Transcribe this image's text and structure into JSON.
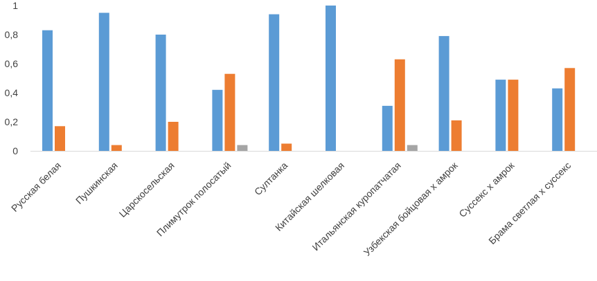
{
  "chart_data": {
    "type": "bar",
    "categories": [
      "Русская белая",
      "Пушкинская",
      "Царскосельская",
      "Плимутрок полосатый",
      "Султанка",
      "Китайская шелковая",
      "Итальянская куропатчатая",
      "Узбекская бойцовая х амрок",
      "Суссекс х амрок",
      "Брама светлая х суссекс"
    ],
    "series": [
      {
        "values": [
          0.83,
          0.95,
          0.8,
          0.42,
          0.94,
          1.0,
          0.31,
          0.79,
          0.49,
          0.43
        ]
      },
      {
        "values": [
          0.17,
          0.04,
          0.2,
          0.53,
          0.05,
          0.0,
          0.63,
          0.21,
          0.49,
          0.57
        ]
      },
      {
        "values": [
          0.0,
          0.0,
          0.0,
          0.04,
          0.0,
          0.0,
          0.04,
          0.0,
          0.0,
          0.0
        ]
      }
    ],
    "colors": [
      "#5b9bd5",
      "#ed7d31",
      "#a5a5a5"
    ],
    "yticks": [
      "0",
      "0,2",
      "0,4",
      "0,6",
      "0,8",
      "1"
    ],
    "ylim": [
      0,
      1
    ],
    "grid": false,
    "legend": "none",
    "title": "",
    "xlabel": "",
    "ylabel": ""
  }
}
